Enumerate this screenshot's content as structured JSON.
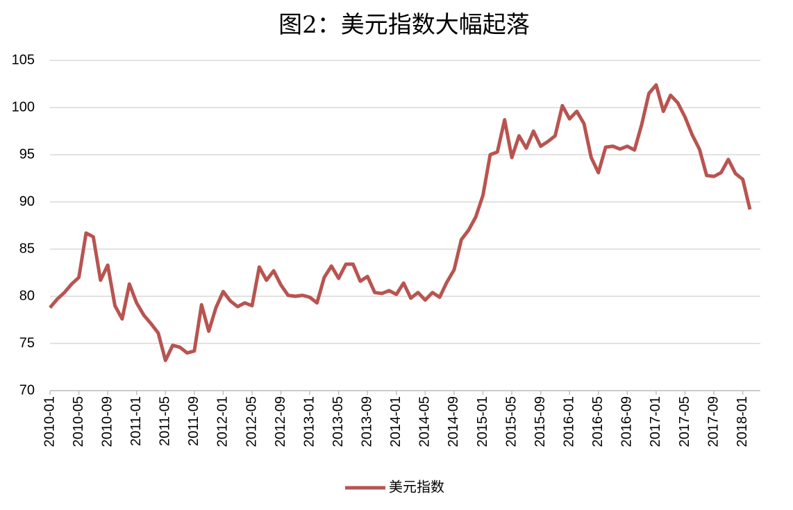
{
  "chart_data": {
    "type": "line",
    "title": "图2：美元指数大幅起落",
    "categories": [
      "2010-01",
      null,
      null,
      null,
      "2010-05",
      null,
      null,
      null,
      "2010-09",
      null,
      null,
      null,
      "2011-01",
      null,
      null,
      null,
      "2011-05",
      null,
      null,
      null,
      "2011-09",
      null,
      null,
      null,
      "2012-01",
      null,
      null,
      null,
      "2012-05",
      null,
      null,
      null,
      "2012-09",
      null,
      null,
      null,
      "2013-01",
      null,
      null,
      null,
      "2013-05",
      null,
      null,
      null,
      "2013-09",
      null,
      null,
      null,
      "2014-01",
      null,
      null,
      null,
      "2014-05",
      null,
      null,
      null,
      "2014-09",
      null,
      null,
      null,
      "2015-01",
      null,
      null,
      null,
      "2015-05",
      null,
      null,
      null,
      "2015-09",
      null,
      null,
      null,
      "2016-01",
      null,
      null,
      null,
      "2016-05",
      null,
      null,
      null,
      "2016-09",
      null,
      null,
      null,
      "2017-01",
      null,
      null,
      null,
      "2017-05",
      null,
      null,
      null,
      "2017-09",
      null,
      null,
      null,
      "2018-01",
      null
    ],
    "series": [
      {
        "name": "美元指数",
        "color": "#b85450",
        "values": [
          78.8,
          79.7,
          80.4,
          81.3,
          82.0,
          86.7,
          86.3,
          81.7,
          83.3,
          79.0,
          77.6,
          81.3,
          79.3,
          78.0,
          77.1,
          76.1,
          73.2,
          74.8,
          74.6,
          74.0,
          74.2,
          79.1,
          76.3,
          78.8,
          80.5,
          79.5,
          78.9,
          79.3,
          79.0,
          83.1,
          81.7,
          82.7,
          81.2,
          80.1,
          80.0,
          80.1,
          79.9,
          79.3,
          82.0,
          83.2,
          81.9,
          83.4,
          83.4,
          81.6,
          82.1,
          80.4,
          80.3,
          80.6,
          80.2,
          81.4,
          79.8,
          80.4,
          79.6,
          80.4,
          79.9,
          81.5,
          82.8,
          86.0,
          87.0,
          88.4,
          90.7,
          95.0,
          95.3,
          98.7,
          94.7,
          97.0,
          95.7,
          97.5,
          95.9,
          96.4,
          97.0,
          100.2,
          98.8,
          99.6,
          98.3,
          94.7,
          93.1,
          95.8,
          95.9,
          95.6,
          95.9,
          95.5,
          98.2,
          101.5,
          102.4,
          99.6,
          101.3,
          100.5,
          99.0,
          97.1,
          95.6,
          92.8,
          92.7,
          93.1,
          94.5,
          93.0,
          92.4,
          89.2
        ]
      }
    ],
    "ylim": [
      70,
      105
    ],
    "yticks": [
      70,
      75,
      80,
      85,
      90,
      95,
      100,
      105
    ],
    "grid": true,
    "legend": "bottom"
  }
}
